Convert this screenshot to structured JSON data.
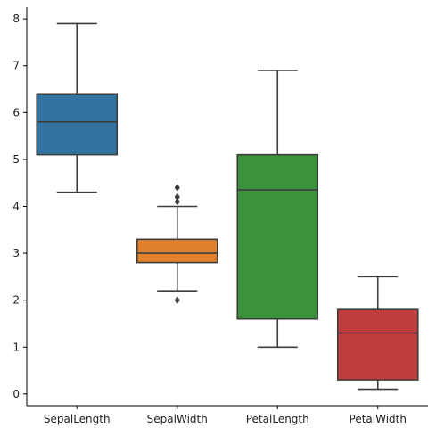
{
  "chart_data": {
    "type": "box",
    "title": "",
    "xlabel": "",
    "ylabel": "",
    "ylim": [
      -0.25,
      8.25
    ],
    "y_ticks": [
      0,
      1,
      2,
      3,
      4,
      5,
      6,
      7,
      8
    ],
    "grid": false,
    "legend": "none",
    "categories": [
      "SepalLength",
      "SepalWidth",
      "PetalLength",
      "PetalWidth"
    ],
    "boxes": [
      {
        "category": "SepalLength",
        "whisker_low": 4.3,
        "q1": 5.1,
        "median": 5.8,
        "q3": 6.4,
        "whisker_high": 7.9,
        "outliers": [],
        "color": "#3274a1"
      },
      {
        "category": "SepalWidth",
        "whisker_low": 2.2,
        "q1": 2.8,
        "median": 3.0,
        "q3": 3.3,
        "whisker_high": 4.0,
        "outliers": [
          2.0,
          4.1,
          4.2,
          4.4
        ],
        "color": "#e1812c"
      },
      {
        "category": "PetalLength",
        "whisker_low": 1.0,
        "q1": 1.6,
        "median": 4.35,
        "q3": 5.1,
        "whisker_high": 6.9,
        "outliers": [],
        "color": "#3a923a"
      },
      {
        "category": "PetalWidth",
        "whisker_low": 0.1,
        "q1": 0.3,
        "median": 1.3,
        "q3": 1.8,
        "whisker_high": 2.5,
        "outliers": [],
        "color": "#c03d3e"
      }
    ],
    "line_color": "#3d3d3d",
    "axis_color": "#000000"
  }
}
